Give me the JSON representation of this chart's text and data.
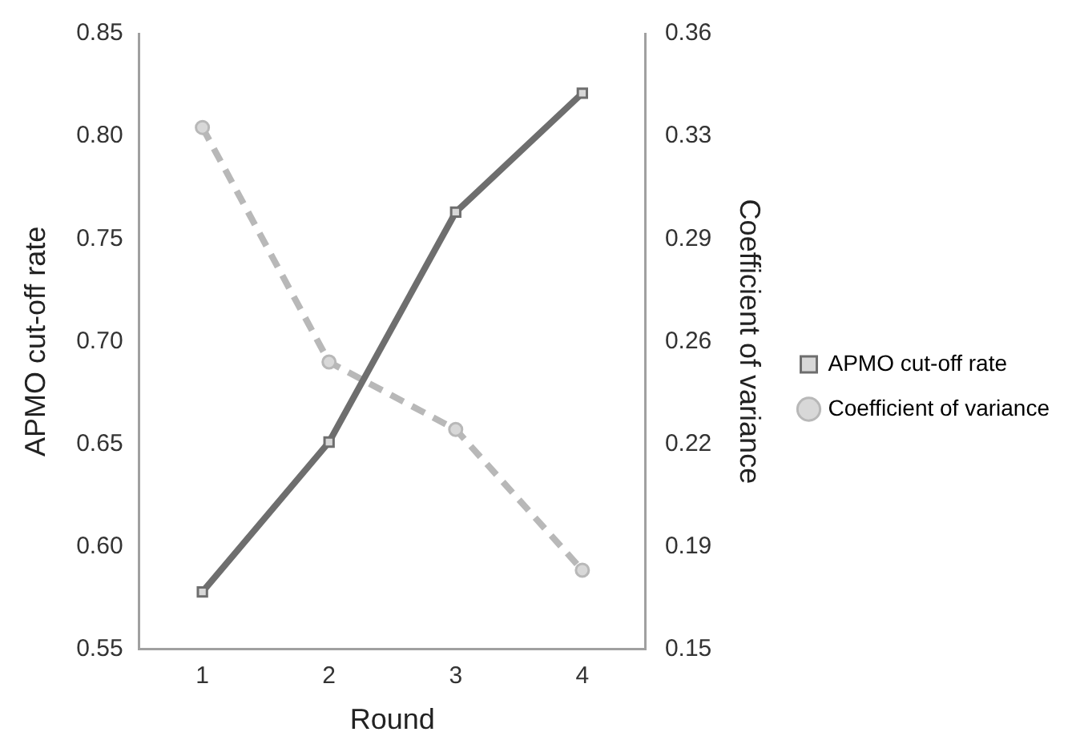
{
  "chart_data": {
    "type": "line",
    "categories": [
      "1",
      "2",
      "3",
      "4"
    ],
    "xlabel": "Round",
    "ylabel": "APMO cut-off rate",
    "y2label": "Coefficient of variance",
    "ylim": [
      0.55,
      0.85
    ],
    "yticks": [
      0.55,
      {
        "value": 0.6,
        "label": "0.60"
      },
      0.65,
      {
        "value": 0.7,
        "label": "0.70"
      },
      0.75,
      {
        "value": 0.8,
        "label": "0.80"
      },
      0.85
    ],
    "y2lim": [
      0.15,
      0.36
    ],
    "y2ticks": [
      0.15,
      {
        "value": 0.185,
        "label": "0.19"
      },
      0.22,
      {
        "value": 0.255,
        "label": "0.26"
      },
      0.29,
      {
        "value": 0.325,
        "label": "0.33"
      },
      0.36
    ],
    "grid": false,
    "legend": "right",
    "series": [
      {
        "name": "APMO cut-off rate",
        "color": "#6e6e6e",
        "values": [
          0.578,
          0.651,
          0.763,
          0.821
        ],
        "marker": "square",
        "line_style": "solid"
      },
      {
        "name": "Coefficient of variance",
        "color": "#b8b8b8",
        "values": [
          0.328,
          0.248,
          0.225,
          0.177
        ],
        "axis": "y2",
        "marker": "circle",
        "line_style": "dashed"
      }
    ]
  }
}
